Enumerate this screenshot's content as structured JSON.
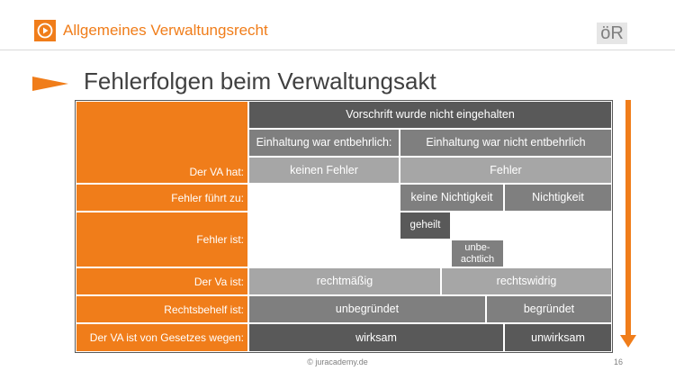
{
  "header": {
    "title": "Allgemeines Verwaltungsrecht",
    "badge": "öR"
  },
  "slide": {
    "title": "Fehlerfolgen beim Verwaltungsakt"
  },
  "table": {
    "top_header": "Vorschrift wurde nicht eingehalten",
    "sub_left": "Einhaltung war entbehrlich:",
    "sub_right": "Einhaltung war nicht entbehrlich",
    "row_labels": {
      "va_hat": "Der VA hat:",
      "fehler_fuehrt": "Fehler führt zu:",
      "fehler_ist": "Fehler ist:",
      "va_ist": "Der Va ist:",
      "rechtsbehelf": "Rechtsbehelf ist:",
      "gesetz": "Der VA ist von Gesetzes wegen:"
    },
    "cells": {
      "keinen_fehler": "keinen Fehler",
      "fehler": "Fehler",
      "keine_nichtigkeit": "keine Nichtigkeit",
      "nichtigkeit": "Nichtigkeit",
      "geheilt": "geheilt",
      "unbeachtlich": "unbe-\nachtlich",
      "rechtmaessig": "rechtmäßig",
      "rechtswidrig": "rechtswidrig",
      "unbegruendet": "unbegründet",
      "begruendet": "begründet",
      "wirksam": "wirksam",
      "unwirksam": "unwirksam"
    }
  },
  "footer": {
    "copyright": "© juracademy.de",
    "page": "16"
  },
  "colors": {
    "accent": "#f07d1a",
    "dark": "#595959",
    "medium": "#7f7f7f",
    "light": "#a6a6a6"
  }
}
